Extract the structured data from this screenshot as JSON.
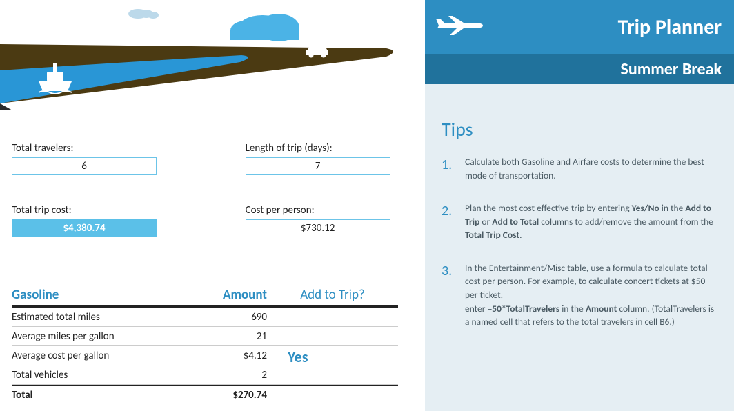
{
  "colors": {
    "primary_blue": "#2d8ec2",
    "dark_blue": "#20729c",
    "light_blue_fill": "#5bc0e8",
    "border_blue": "#6cc4e8",
    "panel_bg": "#e5eef3",
    "road_brown": "#4b3a12",
    "water_blue": "#2996d6",
    "cloud_blue": "#4bb3e6",
    "cloud_light": "#bcd9ea",
    "text_body": "#4a5a63"
  },
  "header": {
    "title": "Trip Planner",
    "subtitle": "Summer Break"
  },
  "tips": {
    "heading": "Tips",
    "items": [
      {
        "num": "1.",
        "text": "Calculate both Gasoline and Airfare costs to determine the best mode of transportation."
      },
      {
        "num": "2.",
        "html": "Plan the most cost effective trip by entering <b>Yes/No</b> in the <b>Add to Trip</b> or <b>Add to Total</b> columns to add/remove the amount from the <b>Total Trip Cost</b>."
      },
      {
        "num": "3.",
        "html": "In the Entertainment/Misc table, use a formula to calculate total cost per person. For example, to calculate concert tickets at $50 per ticket,<br>enter =<b>50*TotalTravelers</b> in the <b>Amount</b> column. (TotalTravelers is a named cell that refers to the total travelers in cell B6.)"
      }
    ]
  },
  "inputs": {
    "travelers_label": "Total travelers:",
    "travelers_value": "6",
    "length_label": "Length of trip (days):",
    "length_value": "7",
    "total_cost_label": "Total trip cost:",
    "total_cost_value": "$4,380.74",
    "per_person_label": "Cost per person:",
    "per_person_value": "$730.12"
  },
  "gasoline": {
    "title": "Gasoline",
    "amount_header": "Amount",
    "add_header": "Add to Trip?",
    "add_value": "Yes",
    "rows": [
      {
        "label": "Estimated total miles",
        "value": "690"
      },
      {
        "label": "Average miles per gallon",
        "value": "21"
      },
      {
        "label": "Average cost per gallon",
        "value": "$4.12"
      },
      {
        "label": "Total vehicles",
        "value": "2"
      }
    ],
    "total_label": "Total",
    "total_value": "$270.74"
  }
}
